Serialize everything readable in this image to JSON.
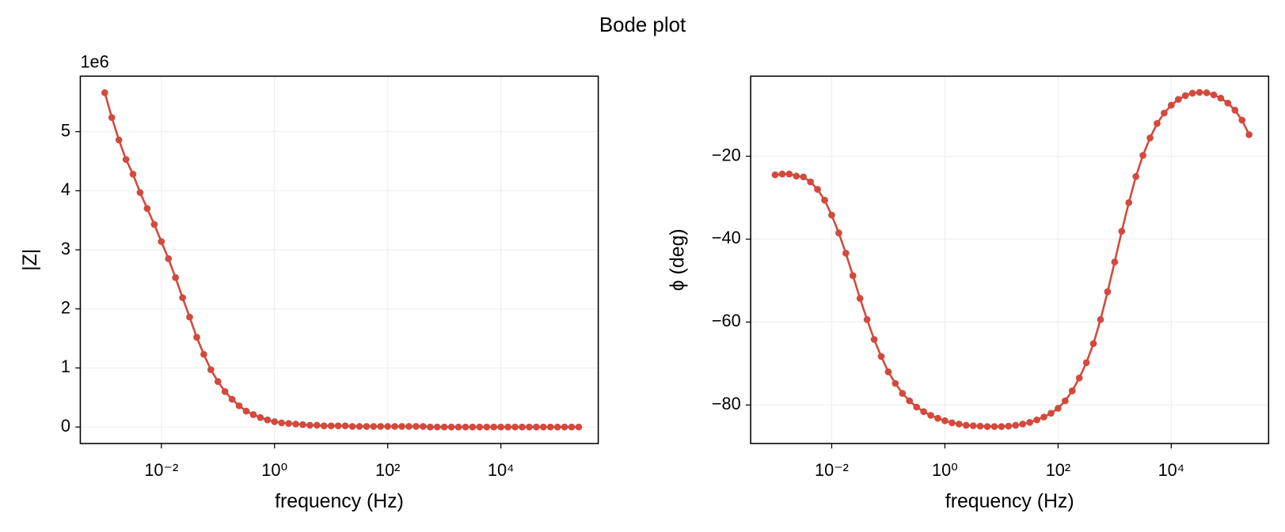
{
  "title": "Bode plot",
  "chart_data": [
    {
      "type": "line",
      "xlabel": "frequency (Hz)",
      "ylabel": "|Z|",
      "offset_label": "1e6",
      "xscale": "log",
      "grid": true,
      "xlim": [
        0.00037,
        525000
      ],
      "xticks": [
        {
          "value": 0.01,
          "label": "10⁻²"
        },
        {
          "value": 1,
          "label": "10⁰"
        },
        {
          "value": 100,
          "label": "10²"
        },
        {
          "value": 10000,
          "label": "10⁴"
        }
      ],
      "ylim": [
        -0.28,
        5.94
      ],
      "yticks": [
        0,
        1,
        2,
        3,
        4,
        5
      ],
      "x": [
        0.001,
        0.001334,
        0.001778,
        0.002371,
        0.003162,
        0.004217,
        0.005623,
        0.007499,
        0.01,
        0.01334,
        0.01778,
        0.02371,
        0.03162,
        0.04217,
        0.05623,
        0.07499,
        0.1,
        0.1334,
        0.1778,
        0.2371,
        0.3162,
        0.4217,
        0.5623,
        0.7499,
        1,
        1.334,
        1.778,
        2.371,
        3.162,
        4.217,
        5.623,
        7.499,
        10,
        13.34,
        17.78,
        23.71,
        31.62,
        42.17,
        56.23,
        74.99,
        100,
        133.4,
        177.8,
        237.1,
        316.2,
        421.7,
        562.3,
        749.9,
        1000,
        1334,
        1778,
        2371,
        3162,
        4217,
        5623,
        7499,
        10000,
        13340,
        17780,
        23710,
        31620,
        42170,
        56230,
        74990,
        100000,
        133400,
        177800,
        237100
      ],
      "series": [
        {
          "color": "#d24a3d",
          "values": [
            5.66,
            5.24,
            4.86,
            4.53,
            4.28,
            3.97,
            3.7,
            3.43,
            3.14,
            2.85,
            2.53,
            2.19,
            1.86,
            1.52,
            1.23,
            0.97,
            0.77,
            0.6,
            0.47,
            0.36,
            0.27,
            0.21,
            0.16,
            0.12,
            0.09,
            0.07,
            0.06,
            0.05,
            0.04,
            0.03,
            0.03,
            0.02,
            0.02,
            0.02,
            0.02,
            0.01,
            0.01,
            0.01,
            0.01,
            0.01,
            0.01,
            0.01,
            0.01,
            0.01,
            0.01,
            0.01,
            0,
            0,
            0,
            0,
            0,
            0,
            0,
            0,
            0,
            0,
            0,
            0,
            0,
            0,
            0,
            0,
            0,
            0,
            0,
            0,
            0,
            0
          ]
        }
      ]
    },
    {
      "type": "line",
      "xlabel": "frequency (Hz)",
      "ylabel": "ϕ (deg)",
      "xscale": "log",
      "grid": true,
      "xlim": [
        0.00037,
        525000
      ],
      "xticks": [
        {
          "value": 0.01,
          "label": "10⁻²"
        },
        {
          "value": 1,
          "label": "10⁰"
        },
        {
          "value": 100,
          "label": "10²"
        },
        {
          "value": 10000,
          "label": "10⁴"
        }
      ],
      "ylim": [
        -89.3,
        -0.7
      ],
      "yticks": [
        {
          "value": -80,
          "label": "−80"
        },
        {
          "value": -60,
          "label": "−60"
        },
        {
          "value": -40,
          "label": "−40"
        },
        {
          "value": -20,
          "label": "−20"
        }
      ],
      "x": [
        0.001,
        0.001334,
        0.001778,
        0.002371,
        0.003162,
        0.004217,
        0.005623,
        0.007499,
        0.01,
        0.01334,
        0.01778,
        0.02371,
        0.03162,
        0.04217,
        0.05623,
        0.07499,
        0.1,
        0.1334,
        0.1778,
        0.2371,
        0.3162,
        0.4217,
        0.5623,
        0.7499,
        1,
        1.334,
        1.778,
        2.371,
        3.162,
        4.217,
        5.623,
        7.499,
        10,
        13.34,
        17.78,
        23.71,
        31.62,
        42.17,
        56.23,
        74.99,
        100,
        133.4,
        177.8,
        237.1,
        316.2,
        421.7,
        562.3,
        749.9,
        1000,
        1334,
        1778,
        2371,
        3162,
        4217,
        5623,
        7499,
        10000,
        13340,
        17780,
        23710,
        31620,
        42170,
        56230,
        74990,
        100000,
        133400,
        177800,
        237100
      ],
      "series": [
        {
          "color": "#d24a3d",
          "values": [
            -24.5,
            -24.3,
            -24.3,
            -24.8,
            -25.0,
            -26.2,
            -28.0,
            -30.6,
            -34.2,
            -38.5,
            -43.4,
            -48.8,
            -54.3,
            -59.4,
            -64.2,
            -68.3,
            -72.0,
            -74.8,
            -77.2,
            -79.0,
            -80.5,
            -81.6,
            -82.5,
            -83.2,
            -83.8,
            -84.3,
            -84.6,
            -84.9,
            -85.0,
            -85.1,
            -85.2,
            -85.2,
            -85.2,
            -85.1,
            -84.9,
            -84.6,
            -84.2,
            -83.6,
            -82.9,
            -82.0,
            -80.8,
            -79.0,
            -76.6,
            -73.5,
            -69.8,
            -65.2,
            -59.4,
            -52.7,
            -45.5,
            -38.1,
            -31.2,
            -24.9,
            -19.8,
            -15.6,
            -12.1,
            -9.6,
            -7.7,
            -6.3,
            -5.4,
            -4.8,
            -4.6,
            -4.7,
            -5.2,
            -6.0,
            -7.2,
            -8.9,
            -11.3,
            -14.8
          ]
        }
      ]
    }
  ]
}
